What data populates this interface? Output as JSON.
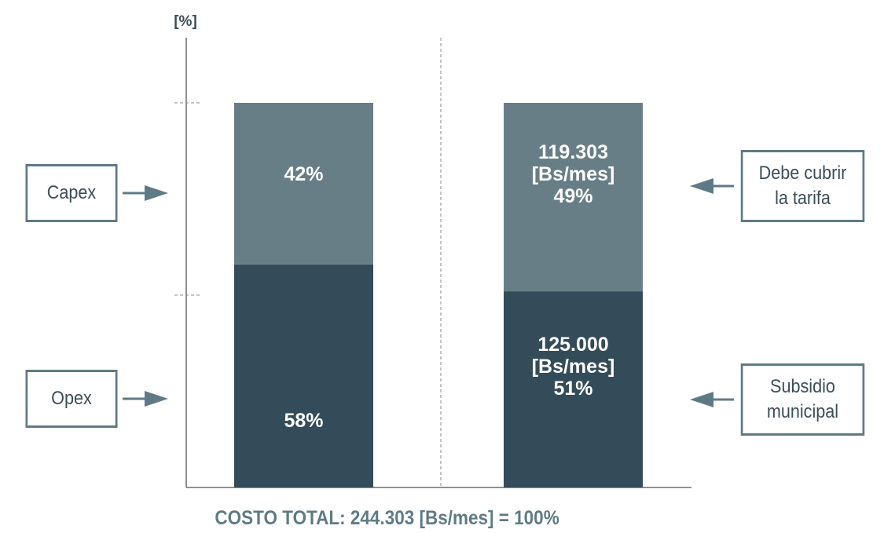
{
  "chart_data": {
    "type": "bar",
    "stacked": true,
    "ylabel": "[%]",
    "categories": [
      "",
      ""
    ],
    "series": [
      {
        "name": "Opex",
        "values": [
          58,
          51
        ],
        "color": "#344b59"
      },
      {
        "name": "Capex",
        "values": [
          42,
          49
        ],
        "color": "#687e87"
      }
    ],
    "segment_labels": [
      [
        "58%",
        "42%"
      ],
      [
        "125.000\n[Bs/mes]\n51%",
        "119.303\n[Bs/mes]\n49%"
      ]
    ],
    "ylim": [
      0,
      100
    ],
    "legend": "boxes-left-and-right"
  },
  "left_labels": {
    "capex": "Capex",
    "opex": "Opex"
  },
  "right_labels": {
    "tarifa_line1": "Debe cubrir",
    "tarifa_line2": "la tarifa",
    "subsidio_line1": "Subsidio",
    "subsidio_line2": "municipal"
  },
  "footer": "COSTO TOTAL: 244.303 [Bs/mes] = 100%",
  "colors": {
    "box_border": "#5f7a85",
    "footer": "#5f7a85"
  }
}
